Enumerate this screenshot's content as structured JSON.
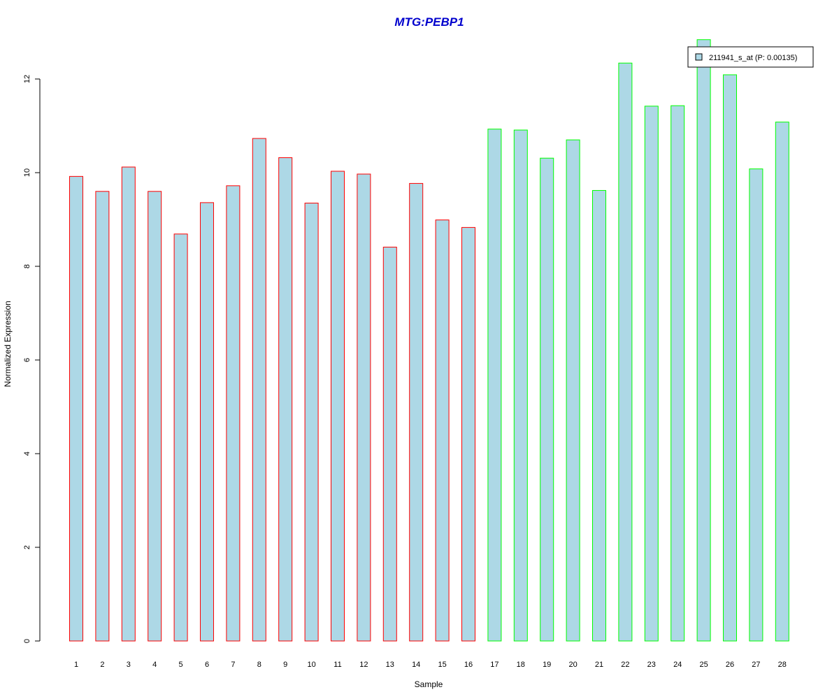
{
  "chart_data": {
    "type": "bar",
    "title": "MTG:PEBP1",
    "xlabel": "Sample",
    "ylabel": "Normalized Expression",
    "categories": [
      "1",
      "2",
      "3",
      "4",
      "5",
      "6",
      "7",
      "8",
      "9",
      "10",
      "11",
      "12",
      "13",
      "14",
      "15",
      "16",
      "17",
      "18",
      "19",
      "20",
      "21",
      "22",
      "23",
      "24",
      "25",
      "26",
      "27",
      "28"
    ],
    "series": [
      {
        "name": "211941_s_at (P: 0.00135)",
        "values": [
          9.92,
          9.6,
          10.12,
          9.6,
          8.69,
          9.36,
          9.72,
          10.73,
          10.32,
          9.35,
          10.03,
          9.97,
          8.41,
          9.77,
          8.99,
          8.83,
          10.93,
          10.91,
          10.31,
          10.7,
          9.62,
          12.34,
          11.42,
          11.43,
          12.84,
          12.09,
          10.08,
          11.08
        ]
      }
    ],
    "groups": [
      {
        "from": 1,
        "to": 16,
        "border_color": "#ff0000"
      },
      {
        "from": 17,
        "to": 28,
        "border_color": "#00ff00"
      }
    ],
    "yticks": [
      "0",
      "2",
      "4",
      "6",
      "8",
      "10",
      "12"
    ],
    "ylim": [
      0,
      12.9
    ],
    "fill_color": "#add8e6",
    "title_color": "#0000cd",
    "grid": false,
    "legend_position": "top-right"
  }
}
